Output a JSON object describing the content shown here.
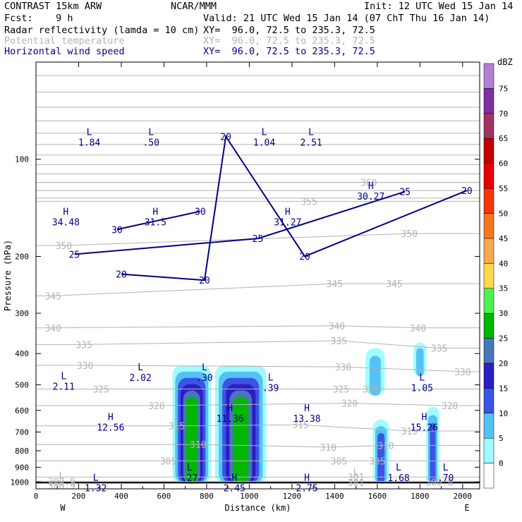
{
  "header": {
    "model": "CONTRAST 15km ARW",
    "org": "NCAR/MMM",
    "init": "Init: 12 UTC Wed 15 Jan 14",
    "fcst": "Fcst:    9 h",
    "valid": "Valid: 21 UTC Wed 15 Jan 14 (07 ChT Thu 16 Jan 14)",
    "fields": [
      {
        "name": "Radar reflectivity (lamda = 10 cm)",
        "xy": "XY=  96.0, 72.5 to 235.3, 72.5"
      },
      {
        "name": "Potential temperature",
        "xy": "XY=  96.0, 72.5 to 235.3, 72.5"
      },
      {
        "name": "Horizontal wind speed",
        "xy": "XY=  96.0, 72.5 to 235.3, 72.5"
      }
    ]
  },
  "colors": {
    "theta": "#b4b4b4",
    "wind": "#000088",
    "ground": "#000000"
  },
  "chart_data": {
    "type": "heatmap",
    "xlabel": "Distance (km)",
    "ylabel": "Pressure (hPa)",
    "xlim": [
      0,
      2080
    ],
    "ylim": [
      1050,
      50
    ],
    "y_scale": "log",
    "x_ticks": [
      "0",
      "200",
      "400",
      "600",
      "800",
      "1000",
      "1200",
      "1400",
      "1600",
      "1800",
      "2000"
    ],
    "y_ticks": [
      "100",
      "200",
      "300",
      "400",
      "500",
      "600",
      "700",
      "800",
      "900",
      "1000"
    ],
    "x_end_labels": {
      "left": "W",
      "right": "E"
    },
    "colorbar": {
      "unit": "dBZ",
      "levels": [
        "0",
        "5",
        "10",
        "15",
        "20",
        "25",
        "30",
        "35",
        "40",
        "45",
        "50",
        "55",
        "60",
        "65",
        "70",
        "75"
      ],
      "colors": [
        "#ffffff",
        "#9ffcff",
        "#54c2f4",
        "#3a54e4",
        "#2a1ec4",
        "#4777bb",
        "#00b800",
        "#4ff04f",
        "#fcd84f",
        "#f6a94f",
        "#f47720",
        "#f4350a",
        "#e40000",
        "#c40000",
        "#a03460",
        "#8030a0",
        "#b080d8"
      ]
    },
    "reflectivity_cells": [
      {
        "x0": 640,
        "x1": 820,
        "top": 435,
        "bottom": 1010,
        "max_dbz": 30
      },
      {
        "x0": 840,
        "x1": 1080,
        "top": 435,
        "bottom": 1010,
        "max_dbz": 30
      },
      {
        "x0": 1545,
        "x1": 1635,
        "top": 385,
        "bottom": 540,
        "max_dbz": 10
      },
      {
        "x0": 1580,
        "x1": 1655,
        "top": 640,
        "bottom": 1010,
        "max_dbz": 15
      },
      {
        "x0": 1770,
        "x1": 1830,
        "top": 370,
        "bottom": 470,
        "max_dbz": 10
      },
      {
        "x0": 1830,
        "x1": 1890,
        "top": 585,
        "bottom": 1010,
        "max_dbz": 15
      }
    ],
    "theta_contours": [
      {
        "label": "300.9",
        "x": 120,
        "p": 995
      },
      {
        "label": "300.8",
        "x": 1890,
        "p": 1000
      },
      {
        "label": "301",
        "x": 1500,
        "p": 965
      },
      {
        "label": "305",
        "x": 620,
        "p": 860
      },
      {
        "label": "305",
        "x": 1420,
        "p": 860
      },
      {
        "label": "305",
        "x": 1600,
        "p": 860
      },
      {
        "label": "310",
        "x": 760,
        "p": 765
      },
      {
        "label": "310",
        "x": 1370,
        "p": 780
      },
      {
        "label": "310",
        "x": 1640,
        "p": 770
      },
      {
        "label": "315",
        "x": 660,
        "p": 670
      },
      {
        "label": "315",
        "x": 1240,
        "p": 665
      },
      {
        "label": "315",
        "x": 1750,
        "p": 695
      },
      {
        "label": "320",
        "x": 565,
        "p": 580
      },
      {
        "label": "320",
        "x": 1470,
        "p": 570
      },
      {
        "label": "320",
        "x": 1940,
        "p": 580
      },
      {
        "label": "325",
        "x": 305,
        "p": 515
      },
      {
        "label": "325",
        "x": 1430,
        "p": 515
      },
      {
        "label": "325",
        "x": 1570,
        "p": 515
      },
      {
        "label": "330",
        "x": 230,
        "p": 435
      },
      {
        "label": "330",
        "x": 1440,
        "p": 440
      },
      {
        "label": "330",
        "x": 2000,
        "p": 455
      },
      {
        "label": "335",
        "x": 225,
        "p": 375
      },
      {
        "label": "335",
        "x": 1420,
        "p": 365
      },
      {
        "label": "335",
        "x": 1890,
        "p": 385
      },
      {
        "label": "340",
        "x": 80,
        "p": 333
      },
      {
        "label": "340",
        "x": 1410,
        "p": 328
      },
      {
        "label": "340",
        "x": 1790,
        "p": 333
      },
      {
        "label": "345",
        "x": 80,
        "p": 265
      },
      {
        "label": "345",
        "x": 1400,
        "p": 243
      },
      {
        "label": "345",
        "x": 1680,
        "p": 243
      },
      {
        "label": "350",
        "x": 130,
        "p": 185
      },
      {
        "label": "350",
        "x": 1750,
        "p": 170
      },
      {
        "label": "355",
        "x": 1280,
        "p": 135
      },
      {
        "label": "360",
        "x": 1560,
        "p": 118
      }
    ],
    "wind_contours": [
      {
        "label": "20",
        "x": 890,
        "p": 85
      },
      {
        "label": "20",
        "x": 400,
        "p": 227
      },
      {
        "label": "20",
        "x": 790,
        "p": 237
      },
      {
        "label": "20",
        "x": 1260,
        "p": 200
      },
      {
        "label": "20",
        "x": 2020,
        "p": 125
      },
      {
        "label": "25",
        "x": 180,
        "p": 197
      },
      {
        "label": "25",
        "x": 1040,
        "p": 176
      },
      {
        "label": "25",
        "x": 1730,
        "p": 126
      },
      {
        "label": "30",
        "x": 380,
        "p": 165
      },
      {
        "label": "30",
        "x": 770,
        "p": 145
      }
    ],
    "extrema": [
      {
        "type": "H",
        "value": "34.48",
        "x": 140,
        "p": 150,
        "color": "#000088"
      },
      {
        "type": "H",
        "value": "31.5",
        "x": 560,
        "p": 150,
        "color": "#000088"
      },
      {
        "type": "H",
        "value": "31.27",
        "x": 1180,
        "p": 150,
        "color": "#000088"
      },
      {
        "type": "H",
        "value": "30.27",
        "x": 1570,
        "p": 125,
        "color": "#000088"
      },
      {
        "type": "L",
        "value": "1.84",
        "x": 250,
        "p": 85,
        "color": "#000088"
      },
      {
        "type": "L",
        "value": ".50",
        "x": 540,
        "p": 85,
        "color": "#000088"
      },
      {
        "type": "L",
        "value": "1.04",
        "x": 1070,
        "p": 85,
        "color": "#000088"
      },
      {
        "type": "L",
        "value": "2.51",
        "x": 1290,
        "p": 85,
        "color": "#000088"
      },
      {
        "type": "L",
        "value": "2.11",
        "x": 130,
        "p": 485,
        "color": "#000088"
      },
      {
        "type": "L",
        "value": "2.02",
        "x": 490,
        "p": 455,
        "color": "#000088"
      },
      {
        "type": "L",
        "value": ".30",
        "x": 790,
        "p": 455,
        "color": "#000088"
      },
      {
        "type": "L",
        "value": ".39",
        "x": 1100,
        "p": 490,
        "color": "#000088"
      },
      {
        "type": "L",
        "value": "1.05",
        "x": 1810,
        "p": 490,
        "color": "#000088"
      },
      {
        "type": "H",
        "value": "12.56",
        "x": 350,
        "p": 650,
        "color": "#000088"
      },
      {
        "type": "H",
        "value": "11.36",
        "x": 910,
        "p": 610,
        "color": "#000088"
      },
      {
        "type": "H",
        "value": "13.38",
        "x": 1270,
        "p": 610,
        "color": "#000088"
      },
      {
        "type": "H",
        "value": "15.26",
        "x": 1820,
        "p": 650,
        "color": "#000088"
      },
      {
        "type": "L",
        "value": ".27",
        "x": 720,
        "p": 930,
        "color": "#000088"
      },
      {
        "type": "L",
        "value": "1.68",
        "x": 1700,
        "p": 930,
        "color": "#000088"
      },
      {
        "type": "L",
        "value": ".70",
        "x": 1920,
        "p": 930,
        "color": "#000088"
      },
      {
        "type": "L",
        "value": "1.32",
        "x": 280,
        "p": 1000,
        "color": "#000088"
      },
      {
        "type": "H",
        "value": "2.45",
        "x": 930,
        "p": 1000,
        "color": "#000088"
      },
      {
        "type": "H",
        "value": "2.75",
        "x": 1270,
        "p": 1000,
        "color": "#000088"
      },
      {
        "type": "L",
        "value": "300.9",
        "x": 120,
        "p": 985,
        "color": "#b4b4b4"
      },
      {
        "type": "L",
        "value": "301",
        "x": 1500,
        "p": 965,
        "color": "#b4b4b4"
      }
    ]
  }
}
